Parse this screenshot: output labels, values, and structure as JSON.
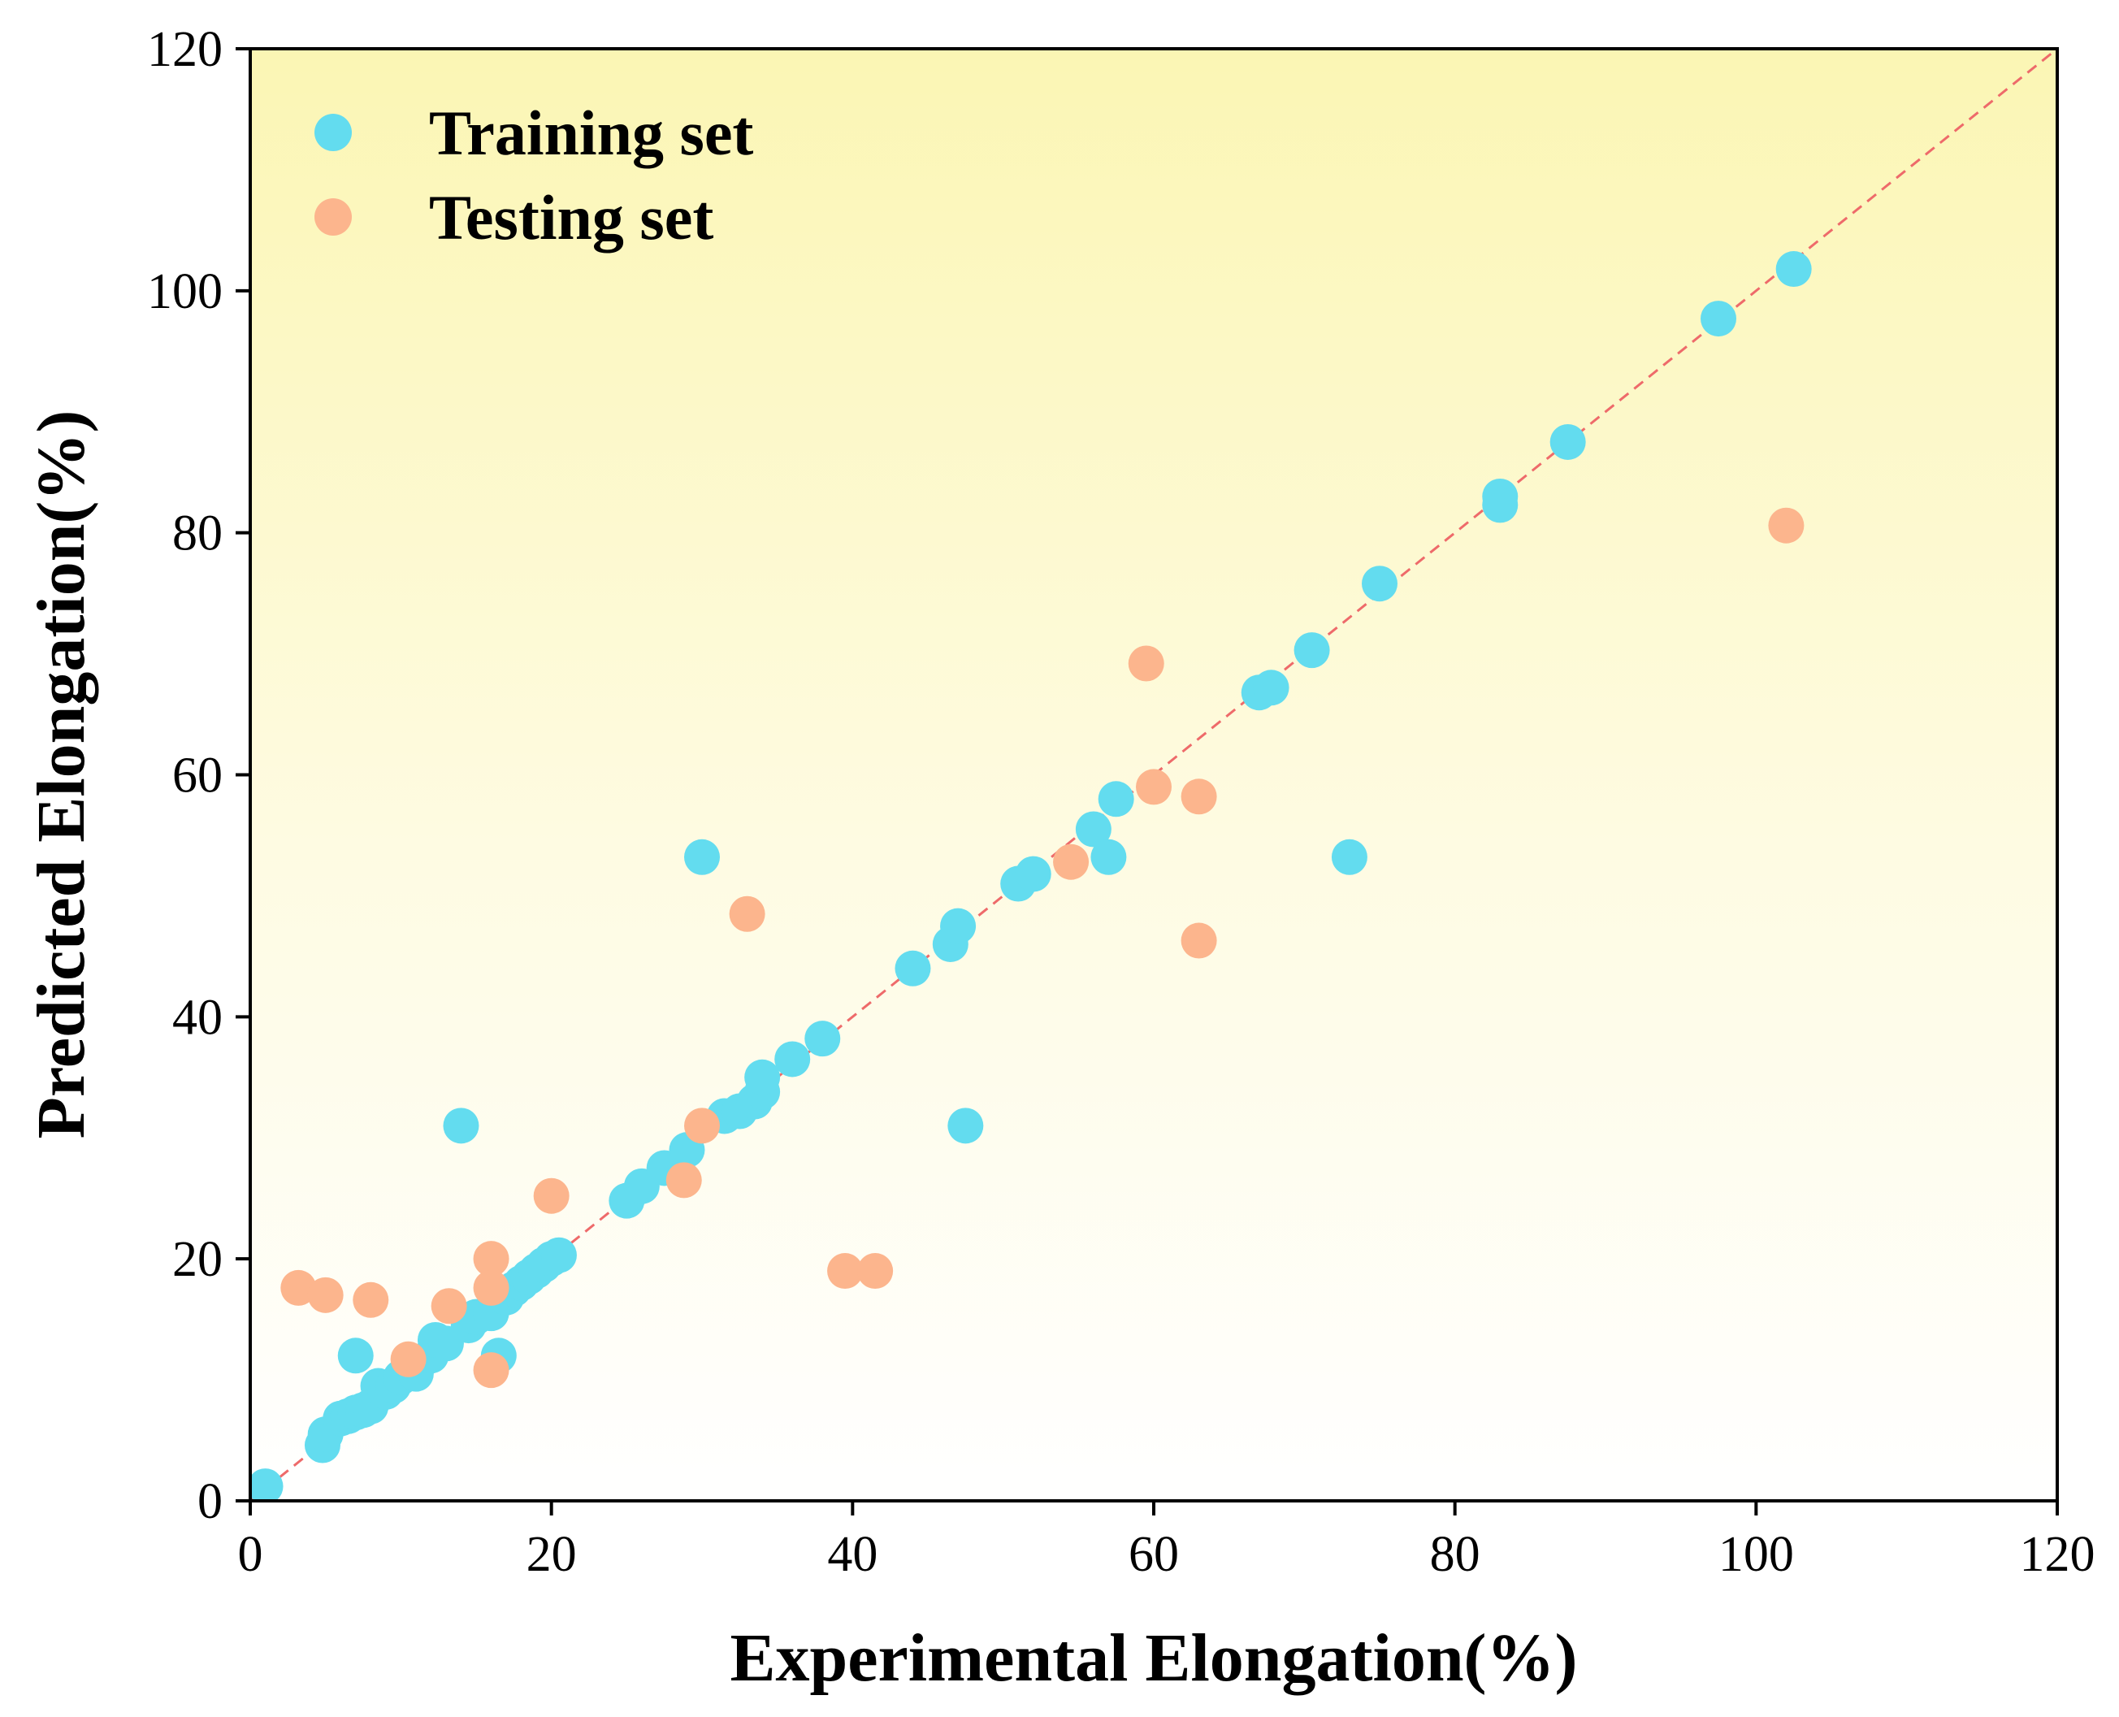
{
  "chart_data": {
    "type": "scatter",
    "title": "",
    "xlabel": "Experimental Elongation(%)",
    "ylabel": "Predicted Elongation(%)",
    "xlim": [
      0,
      120
    ],
    "ylim": [
      0,
      120
    ],
    "xticks": [
      0,
      20,
      40,
      60,
      80,
      100,
      120
    ],
    "yticks": [
      0,
      20,
      40,
      60,
      80,
      100,
      120
    ],
    "grid": false,
    "legend_position": "top-left",
    "reference_line": {
      "type": "y=x",
      "style": "dashed",
      "color": "#ee6a6a"
    },
    "background_gradient": {
      "top": "#fbf6b4",
      "bottom": "#ffffff"
    },
    "series": [
      {
        "name": "Training set",
        "color": "#63dcef",
        "points": [
          [
            1,
            1.2
          ],
          [
            4.8,
            4.6
          ],
          [
            5,
            5.5
          ],
          [
            6,
            6.8
          ],
          [
            6.5,
            7
          ],
          [
            7,
            7.3
          ],
          [
            7,
            12
          ],
          [
            7.5,
            7.5
          ],
          [
            8,
            7.8
          ],
          [
            8.5,
            9.5
          ],
          [
            9,
            9
          ],
          [
            9.5,
            9.5
          ],
          [
            10,
            10.2
          ],
          [
            11,
            10.5
          ],
          [
            12,
            12
          ],
          [
            12.3,
            13.3
          ],
          [
            13,
            13
          ],
          [
            14,
            31
          ],
          [
            14.5,
            14.5
          ],
          [
            15,
            15.2
          ],
          [
            16,
            15.5
          ],
          [
            16.5,
            12
          ],
          [
            17,
            16.8
          ],
          [
            17.5,
            17.5
          ],
          [
            18,
            18
          ],
          [
            18.5,
            18.5
          ],
          [
            19,
            19
          ],
          [
            19.5,
            19.5
          ],
          [
            20,
            20
          ],
          [
            20.5,
            20.3
          ],
          [
            25,
            24.8
          ],
          [
            26,
            26
          ],
          [
            27.5,
            27.5
          ],
          [
            29,
            29
          ],
          [
            30,
            53.2
          ],
          [
            31.5,
            31.8
          ],
          [
            32.5,
            32.2
          ],
          [
            33.5,
            33
          ],
          [
            34,
            33.8
          ],
          [
            34,
            35
          ],
          [
            36,
            36.5
          ],
          [
            38,
            38.2
          ],
          [
            44,
            44
          ],
          [
            46.5,
            46
          ],
          [
            47,
            47.5
          ],
          [
            47.5,
            31
          ],
          [
            51,
            51
          ],
          [
            52,
            51.8
          ],
          [
            56,
            55.5
          ],
          [
            57,
            53.2
          ],
          [
            57.5,
            58
          ],
          [
            67,
            66.8
          ],
          [
            67.8,
            67.2
          ],
          [
            70.5,
            70.3
          ],
          [
            73,
            53.2
          ],
          [
            75,
            75.8
          ],
          [
            83,
            83
          ],
          [
            83,
            82.3
          ],
          [
            87.5,
            87.5
          ],
          [
            97.5,
            97.7
          ],
          [
            102.5,
            101.8
          ]
        ]
      },
      {
        "name": "Testing set",
        "color": "#fcb58d",
        "points": [
          [
            3.2,
            17.6
          ],
          [
            5,
            17
          ],
          [
            8,
            16.6
          ],
          [
            10.5,
            11.7
          ],
          [
            13.2,
            16.1
          ],
          [
            16,
            10.8
          ],
          [
            16,
            20
          ],
          [
            16,
            17.6
          ],
          [
            20,
            25.2
          ],
          [
            28.8,
            26.5
          ],
          [
            30,
            31
          ],
          [
            33,
            48.5
          ],
          [
            39.5,
            19
          ],
          [
            41.5,
            19
          ],
          [
            54.5,
            52.8
          ],
          [
            59.5,
            69.2
          ],
          [
            60,
            59
          ],
          [
            63,
            58.2
          ],
          [
            63,
            46.3
          ],
          [
            102,
            80.6
          ]
        ]
      }
    ]
  }
}
